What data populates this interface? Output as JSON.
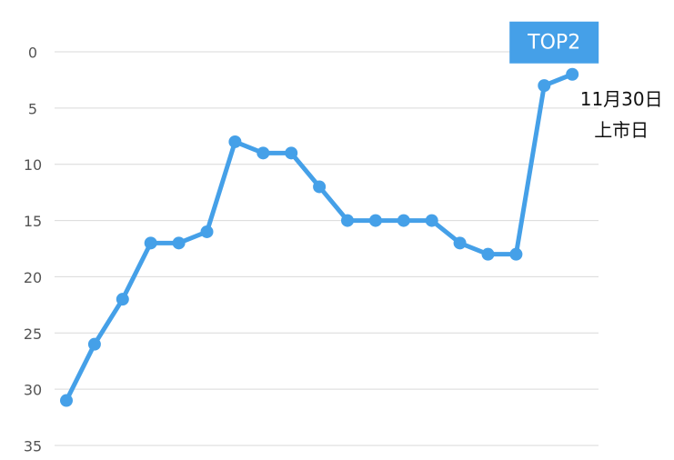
{
  "chart_data": {
    "type": "line",
    "categories": [
      null,
      null,
      null,
      null,
      null,
      null,
      null,
      null,
      null,
      null,
      null,
      null,
      null,
      null,
      null,
      null,
      null,
      null,
      null
    ],
    "series": [
      {
        "color": "#45a0e8",
        "values": [
          31,
          26,
          22,
          17,
          17,
          16,
          8,
          9,
          9,
          12,
          15,
          15,
          15,
          15,
          17,
          18,
          18,
          3,
          2
        ]
      }
    ],
    "ylim": [
      0,
      35
    ],
    "yticks": [
      0,
      5,
      10,
      15,
      20,
      25,
      30,
      35
    ],
    "y_inverted": true,
    "grid": true,
    "annotations": [
      "TOP2",
      "11月30日",
      "上市日"
    ]
  }
}
